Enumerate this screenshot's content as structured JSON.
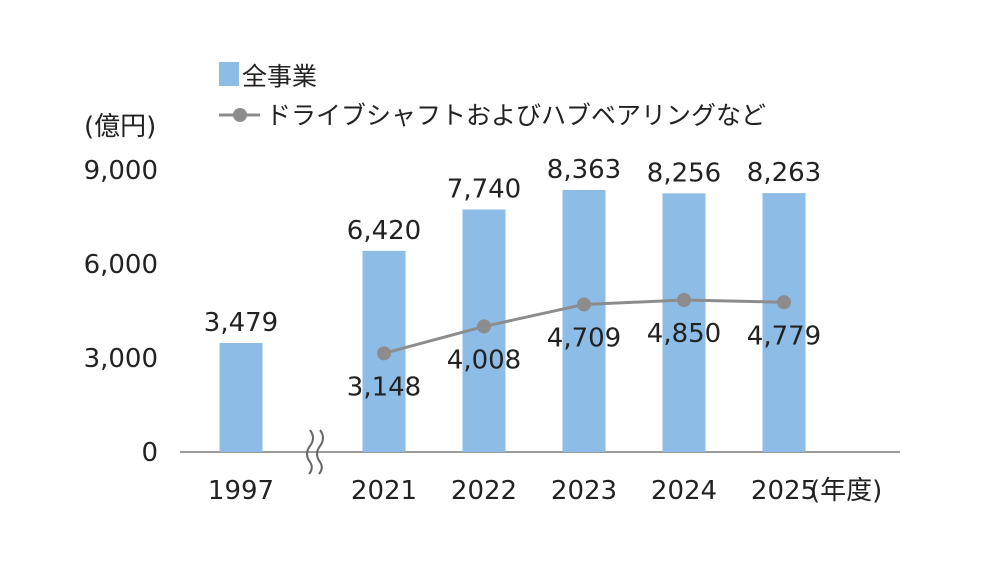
{
  "chart_data": {
    "type": "bar",
    "y_unit": "(億円)",
    "x_unit": "(年度)",
    "categories": [
      "1997",
      "2021",
      "2022",
      "2023",
      "2024",
      "2025"
    ],
    "ylim": [
      0,
      9000
    ],
    "yticks": [
      "0",
      "3,000",
      "6,000",
      "9,000"
    ],
    "axis_break": true,
    "grid": false,
    "legend_position": "top-left",
    "series": [
      {
        "name": "全事業",
        "kind": "bar",
        "color": "#8dbde6",
        "values": [
          3479,
          6420,
          7740,
          8363,
          8256,
          8263
        ],
        "labels": [
          "3,479",
          "6,420",
          "7,740",
          "8,363",
          "8,256",
          "8,263"
        ]
      },
      {
        "name": "ドライブシャフトおよびハブベアリングなど",
        "kind": "line",
        "color": "#8c8c8c",
        "values": [
          null,
          3148,
          4008,
          4709,
          4850,
          4779
        ],
        "labels": [
          "",
          "3,148",
          "4,008",
          "4,709",
          "4,850",
          "4,779"
        ]
      }
    ]
  }
}
